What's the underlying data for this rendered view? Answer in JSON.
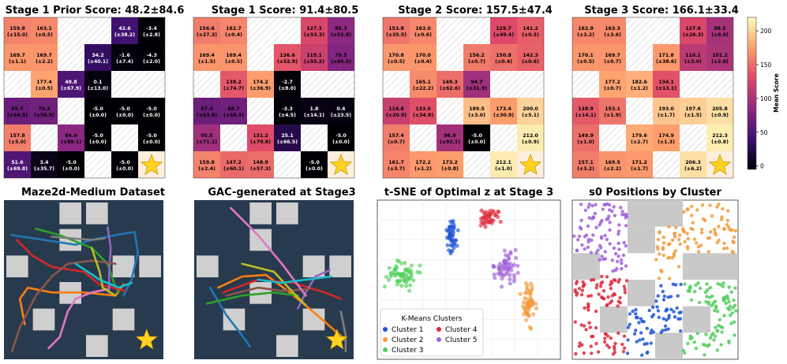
{
  "chart_data": [
    {
      "type": "heatmap",
      "title": "Stage 1 Prior Score: 48.2±84.6",
      "grid": [
        [
          [
            "159.8",
            "(±15.0)"
          ],
          [
            "163.1",
            "(±0.5)"
          ],
          null,
          null,
          [
            "42.6",
            "(±38.2)"
          ],
          [
            "-3.4",
            "(±2.8)"
          ]
        ],
        [
          [
            "169.7",
            "(±1.1)"
          ],
          [
            "169.7",
            "(±2.2)"
          ],
          null,
          [
            "34.2",
            "(±40.1)"
          ],
          [
            "-1.6",
            "(±7.4)"
          ],
          [
            "-4.3",
            "(±2.0)"
          ]
        ],
        [
          null,
          [
            "177.4",
            "(±0.5)"
          ],
          [
            "49.8",
            "(±67.9)"
          ],
          [
            "0.1",
            "(±13.0)"
          ],
          null,
          null
        ],
        [
          [
            "65.7",
            "(±44.5)"
          ],
          [
            "70.2",
            "(±56.9)"
          ],
          null,
          [
            "-5.0",
            "(±0.0)"
          ],
          [
            "-5.0",
            "(±0.0)"
          ],
          [
            "-5.0",
            "(±0.0)"
          ]
        ],
        [
          [
            "157.8",
            "(±5.0)"
          ],
          null,
          [
            "84.0",
            "(±89.1)"
          ],
          [
            "-5.0",
            "(±0.0)"
          ],
          null,
          [
            "-5.0",
            "(±0.0)"
          ]
        ],
        [
          [
            "51.6",
            "(±69.8)"
          ],
          [
            "3.4",
            "(±35.7)"
          ],
          [
            "-5.0",
            "(±0.0)"
          ],
          null,
          [
            "-5.0",
            "(±0.0)"
          ],
          "goal"
        ]
      ]
    },
    {
      "type": "heatmap",
      "title": "Stage 1 Score: 91.4±80.5",
      "grid": [
        [
          [
            "156.6",
            "(±27.3)"
          ],
          [
            "162.7",
            "(±0.4)"
          ],
          null,
          null,
          [
            "127.3",
            "(±53.3)"
          ],
          [
            "85.3",
            "(±52.8)"
          ]
        ],
        [
          [
            "169.4",
            "(±1.5)"
          ],
          [
            "169.4",
            "(±0.5)"
          ],
          null,
          [
            "136.6",
            "(±52.9)"
          ],
          [
            "119.1",
            "(±55.2)"
          ],
          [
            "79.5",
            "(±65.5)"
          ]
        ],
        [
          null,
          [
            "138.2",
            "(±74.7)"
          ],
          [
            "174.2",
            "(±36.9)"
          ],
          [
            "-2.7",
            "(±8.0)"
          ],
          null,
          null
        ],
        [
          [
            "67.4",
            "(±63.8)"
          ],
          [
            "68.7",
            "(±68.3)"
          ],
          null,
          [
            "-3.3",
            "(±4.5)"
          ],
          [
            "1.8",
            "(±14.1)"
          ],
          [
            "0.4",
            "(±23.5)"
          ]
        ],
        [
          [
            "95.5",
            "(±71.1)"
          ],
          null,
          [
            "131.2",
            "(±79.8)"
          ],
          [
            "25.1",
            "(±66.5)"
          ],
          null,
          [
            "-5.0",
            "(±0.0)"
          ]
        ],
        [
          [
            "159.8",
            "(±2.4)"
          ],
          [
            "147.2",
            "(±60.1)"
          ],
          [
            "148.9",
            "(±57.3)"
          ],
          null,
          [
            "-5.0",
            "(±0.0)"
          ],
          "goal"
        ]
      ]
    },
    {
      "type": "heatmap",
      "title": "Stage 2 Score: 157.5±47.4",
      "grid": [
        [
          [
            "153.8",
            "(±35.5)"
          ],
          [
            "163.0",
            "(±0.6)"
          ],
          null,
          null,
          [
            "129.7",
            "(±49.4)"
          ],
          [
            "141.2",
            "(±0.5)"
          ]
        ],
        [
          [
            "170.8",
            "(±0.5)"
          ],
          [
            "170.0",
            "(±0.4)"
          ],
          null,
          [
            "156.2",
            "(±0.7)"
          ],
          [
            "150.8",
            "(±0.4)"
          ],
          [
            "142.3",
            "(±0.6)"
          ]
        ],
        [
          null,
          [
            "165.1",
            "(±22.2)"
          ],
          [
            "149.3",
            "(±62.6)"
          ],
          [
            "94.7",
            "(±31.9)"
          ],
          null,
          null
        ],
        [
          [
            "116.8",
            "(±20.9)"
          ],
          [
            "133.0",
            "(±34.9)"
          ],
          null,
          [
            "189.5",
            "(±3.0)"
          ],
          [
            "173.4",
            "(±30.9)"
          ],
          [
            "200.0",
            "(±5.1)"
          ]
        ],
        [
          [
            "157.4",
            "(±0.7)"
          ],
          null,
          [
            "96.8",
            "(±92.1)"
          ],
          [
            "-5.0",
            "(±0.0)"
          ],
          null,
          [
            "212.0",
            "(±0.9)"
          ]
        ],
        [
          [
            "161.7",
            "(±3.7)"
          ],
          [
            "172.2",
            "(±1.2)"
          ],
          [
            "173.2",
            "(±0.8)"
          ],
          null,
          [
            "212.1",
            "(±1.0)"
          ],
          "goal"
        ]
      ]
    },
    {
      "type": "heatmap",
      "title": "Stage 3 Score: 166.1±33.4",
      "grid": [
        [
          [
            "162.8",
            "(±3.2)"
          ],
          [
            "163.3",
            "(±3.6)"
          ],
          null,
          null,
          [
            "127.6",
            "(±26.3)"
          ],
          [
            "98.5",
            "(±6.0)"
          ]
        ],
        [
          [
            "170.1",
            "(±0.5)"
          ],
          [
            "169.7",
            "(±0.7)"
          ],
          null,
          [
            "171.8",
            "(±38.6)"
          ],
          [
            "110.1",
            "(±3.0)"
          ],
          [
            "101.2",
            "(±2.8)"
          ]
        ],
        [
          null,
          [
            "177.2",
            "(±0.7)"
          ],
          [
            "182.6",
            "(±1.2)"
          ],
          [
            "134.1",
            "(±13.1)"
          ],
          null,
          null
        ],
        [
          [
            "138.9",
            "(±14.1)"
          ],
          [
            "153.1",
            "(±1.9)"
          ],
          null,
          [
            "193.0",
            "(±1.7)"
          ],
          [
            "197.6",
            "(±1.5)"
          ],
          [
            "205.8",
            "(±0.9)"
          ]
        ],
        [
          [
            "149.9",
            "(±1.0)"
          ],
          null,
          [
            "179.6",
            "(±2.7)"
          ],
          [
            "174.9",
            "(±1.3)"
          ],
          null,
          [
            "212.3",
            "(±0.8)"
          ]
        ],
        [
          [
            "157.1",
            "(±3.2)"
          ],
          [
            "169.5",
            "(±2.2)"
          ],
          [
            "171.2",
            "(±1.7)"
          ],
          null,
          [
            "206.3",
            "(±6.2)"
          ],
          "goal"
        ]
      ]
    },
    {
      "type": "colorbar",
      "label": "Mean Score",
      "ticks": [
        "0",
        "50",
        "100",
        "150",
        "200"
      ],
      "range": [
        -5,
        220
      ]
    },
    {
      "type": "line",
      "title": "Maze2d-Medium Dataset",
      "colors": [
        "#1f77b4",
        "#ff7f0e",
        "#2ca02c",
        "#d62728",
        "#9467bd",
        "#8c564b",
        "#e377c2",
        "#7f7f7f",
        "#bcbd22",
        "#17becf"
      ]
    },
    {
      "type": "line",
      "title": "GAC-generated at Stage3"
    },
    {
      "type": "scatter",
      "title": "t-SNE of Optimal z at Stage 3",
      "legend_title": "K-Means Clusters",
      "series": [
        {
          "name": "Cluster 1",
          "color": "#1f55d4"
        },
        {
          "name": "Cluster 2",
          "color": "#f39a3a"
        },
        {
          "name": "Cluster 3",
          "color": "#4fcf5a"
        },
        {
          "name": "Cluster 4",
          "color": "#dd2a3a"
        },
        {
          "name": "Cluster 5",
          "color": "#a061d8"
        }
      ]
    },
    {
      "type": "scatter",
      "title": "s0 Positions by Cluster"
    }
  ],
  "goal_icon": "star-icon"
}
